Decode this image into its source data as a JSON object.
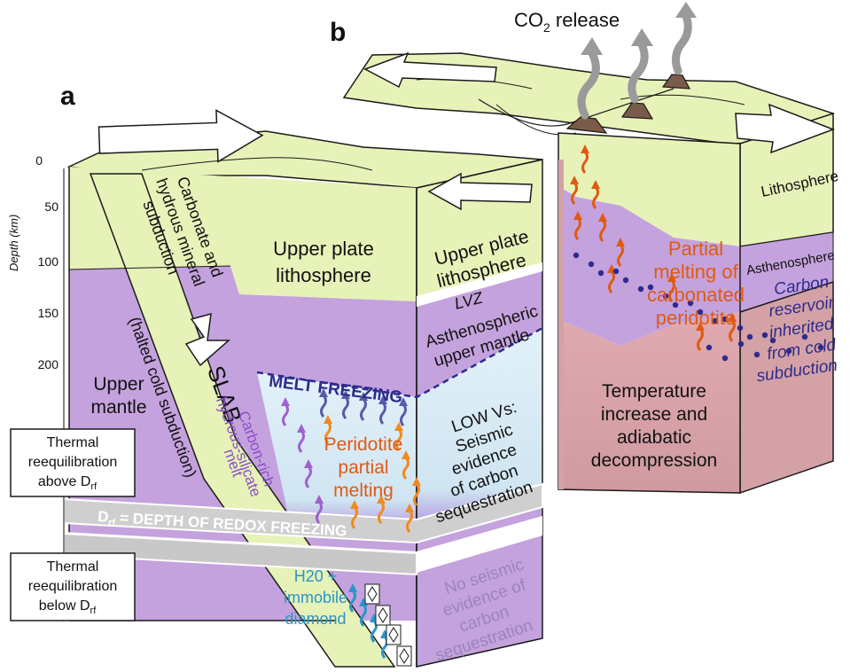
{
  "panels": {
    "a": {
      "letter": "a"
    },
    "b": {
      "letter": "b"
    }
  },
  "depth_axis": {
    "label": "Depth (km)",
    "ticks": [
      "0",
      "50",
      "100",
      "150",
      "200"
    ]
  },
  "panel_a": {
    "upper_plate": [
      "Upper plate",
      "lithosphere"
    ],
    "upper_plate_front": [
      "Upper plate",
      "lithosphere"
    ],
    "lvz": "LVZ",
    "asthenospheric": [
      "Asthenospheric",
      "upper mantle"
    ],
    "melt_freezing": "MELT FREEZING",
    "low_vs": [
      "LOW Vs:",
      "Seismic",
      "evidence",
      "of carbon",
      "sequestration"
    ],
    "slab_label": "SLAB",
    "slab_text": [
      "Carbonate and",
      "hydrous mineral",
      "subduction"
    ],
    "halted": "(halted cold subduction)",
    "upper_mantle": [
      "Upper",
      "mantle"
    ],
    "carbon_melt": [
      "Carbon-rich",
      "hydrous-silicate",
      "melt"
    ],
    "peridotite": [
      "Peridotite",
      "partial",
      "melting"
    ],
    "thermal_above": [
      "Thermal",
      "reequilibration",
      "above D"
    ],
    "thermal_below": [
      "Thermal",
      "reequilibration",
      "below D"
    ],
    "drf_sub": "rf",
    "drf_band": "D",
    "drf_band_rest": " = DEPTH OF REDOX FREEZING",
    "h2o": [
      "H20 +",
      "immobile",
      "diamond"
    ],
    "no_seismic": [
      "No seismic",
      "evidence of",
      "carbon",
      "sequestration"
    ]
  },
  "panel_b": {
    "co2_release": [
      "CO",
      "2",
      " release"
    ],
    "lithosphere": "Lithosphere",
    "asthenosphere": "Asthenosphere",
    "partial_melting": [
      "Partial",
      "melting of",
      "carbonated",
      "peridotite"
    ],
    "carbon_reservoir": [
      "Carbon",
      "reservoir",
      "inherited",
      "from cold",
      "subduction"
    ],
    "temperature": [
      "Temperature",
      "increase and",
      "adiabatic",
      "decompression"
    ]
  },
  "colors": {
    "lithosphere": "#e6f2b8",
    "mantle": "#c4a2dd",
    "seq_zone": "#d9ecf5",
    "deep_red": "#d4a2a6",
    "melt_text": "#8a4fc9",
    "orange_text": "#e05a12",
    "blue_text": "#2c94c8",
    "navy_text": "#2f2a8c"
  }
}
